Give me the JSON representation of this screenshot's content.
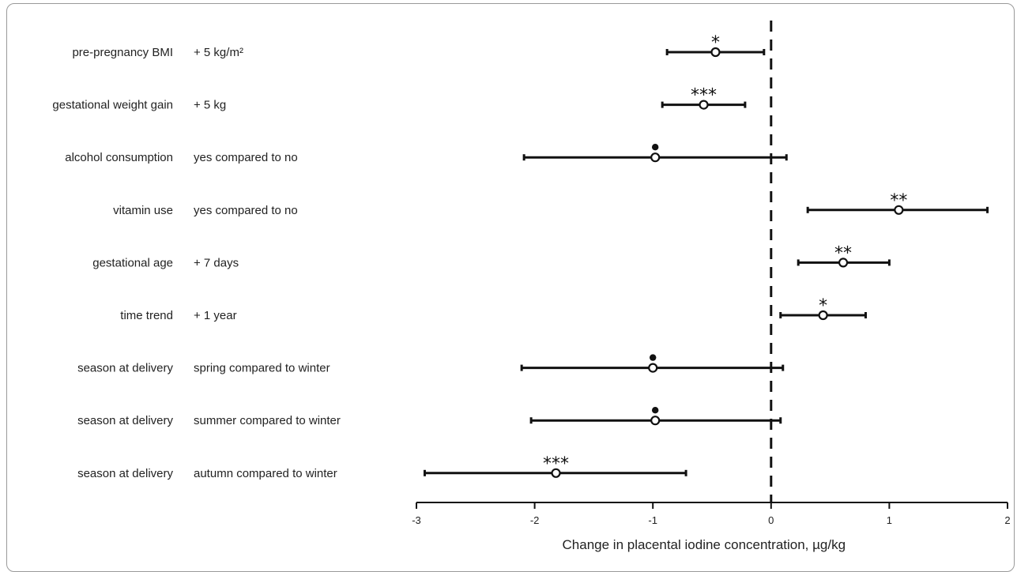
{
  "chart_data": {
    "type": "forest",
    "xlabel": "Change in placental iodine concentration, µg/kg",
    "xlim": [
      -3,
      2
    ],
    "xticks": [
      "-3",
      "-2",
      "-1",
      "0",
      "1",
      "2"
    ],
    "reference_line": 0,
    "rows": [
      {
        "variable": "pre-pregnancy BMI",
        "contrast": "+ 5 kg/m²",
        "estimate": -0.47,
        "lower": -0.88,
        "upper": -0.06,
        "significance": "*"
      },
      {
        "variable": "gestational weight gain",
        "contrast": "+ 5 kg",
        "estimate": -0.57,
        "lower": -0.92,
        "upper": -0.22,
        "significance": "***"
      },
      {
        "variable": "alcohol consumption",
        "contrast": "yes compared to no",
        "estimate": -0.98,
        "lower": -2.09,
        "upper": 0.13,
        "significance": "•"
      },
      {
        "variable": "vitamin use",
        "contrast": "yes compared to no",
        "estimate": 1.08,
        "lower": 0.31,
        "upper": 1.83,
        "significance": "**"
      },
      {
        "variable": "gestational age",
        "contrast": "+ 7 days",
        "estimate": 0.61,
        "lower": 0.23,
        "upper": 1.0,
        "significance": "**"
      },
      {
        "variable": "time trend",
        "contrast": "+ 1 year",
        "estimate": 0.44,
        "lower": 0.08,
        "upper": 0.8,
        "significance": "*"
      },
      {
        "variable": "season at delivery",
        "contrast": "spring compared to winter",
        "estimate": -1.0,
        "lower": -2.11,
        "upper": 0.1,
        "significance": "•"
      },
      {
        "variable": "season at delivery",
        "contrast": "summer compared to winter",
        "estimate": -0.98,
        "lower": -2.03,
        "upper": 0.08,
        "significance": "•"
      },
      {
        "variable": "season at delivery",
        "contrast": "autumn compared to winter",
        "estimate": -1.82,
        "lower": -2.93,
        "upper": -0.72,
        "significance": "***"
      }
    ],
    "grid": false
  }
}
